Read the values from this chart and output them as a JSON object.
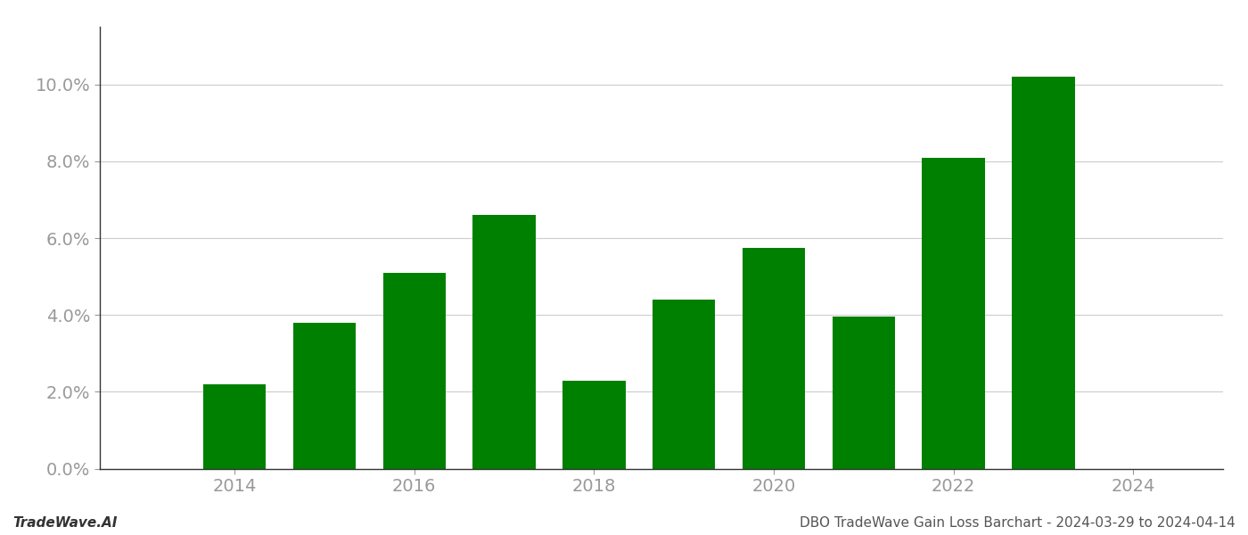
{
  "years": [
    2014,
    2015,
    2016,
    2017,
    2018,
    2019,
    2020,
    2021,
    2022,
    2023
  ],
  "values": [
    0.022,
    0.038,
    0.051,
    0.066,
    0.0228,
    0.044,
    0.0575,
    0.0395,
    0.081,
    0.102
  ],
  "bar_color": "#008000",
  "ylim": [
    0,
    0.115
  ],
  "yticks": [
    0.0,
    0.02,
    0.04,
    0.06,
    0.08,
    0.1
  ],
  "xticks": [
    2014,
    2016,
    2018,
    2020,
    2022,
    2024
  ],
  "xlim": [
    2012.5,
    2025.0
  ],
  "footer_left": "TradeWave.AI",
  "footer_right": "DBO TradeWave Gain Loss Barchart - 2024-03-29 to 2024-04-14",
  "footer_fontsize": 11,
  "grid_color": "#cccccc",
  "tick_label_color": "#999999",
  "bar_width": 0.7,
  "background_color": "#ffffff",
  "spine_color": "#333333"
}
